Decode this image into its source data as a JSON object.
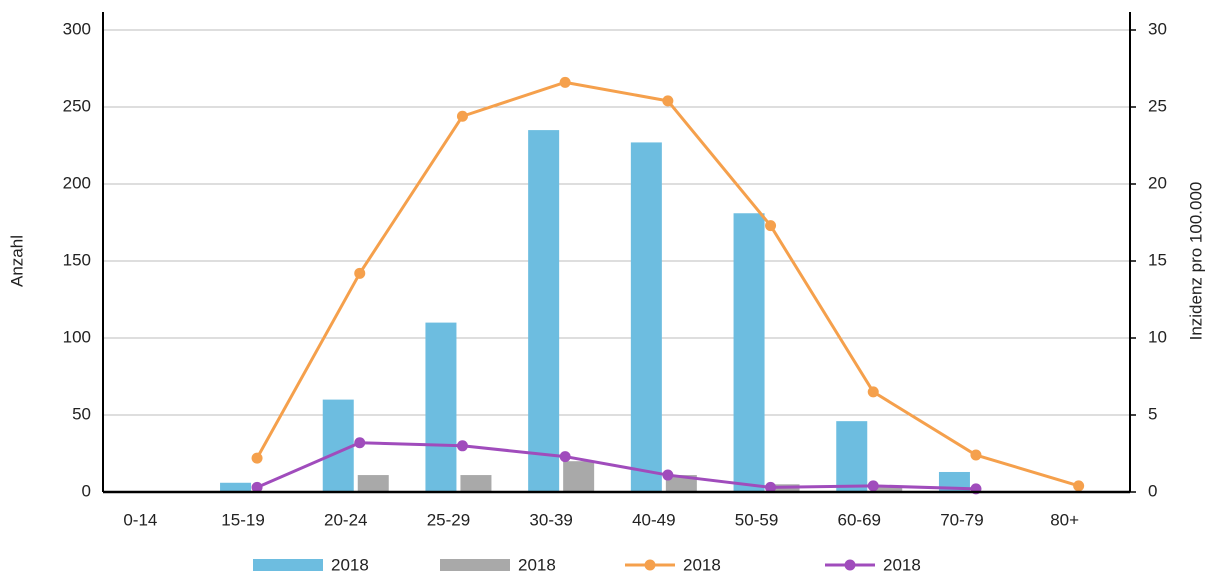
{
  "chart_data": {
    "type": "bar-line",
    "categories": [
      "0-14",
      "15-19",
      "20-24",
      "25-29",
      "30-39",
      "40-49",
      "50-59",
      "60-69",
      "70-79",
      "80+"
    ],
    "y_label": "Anzahl",
    "y2_label": "Inzidenz pro 100.000",
    "ylim": [
      0,
      300
    ],
    "yticks": [
      0,
      50,
      100,
      150,
      200,
      250,
      300
    ],
    "y2lim": [
      0,
      30
    ],
    "y2ticks": [
      0,
      5,
      10,
      15,
      20,
      25,
      30
    ],
    "grid": true,
    "legend": "bottom",
    "series": [
      {
        "name": "2018",
        "type": "bar",
        "color": "#6dbde0",
        "values": [
          0,
          6,
          60,
          110,
          235,
          227,
          181,
          46,
          13,
          0
        ]
      },
      {
        "name": "2018",
        "type": "bar",
        "color": "#a9a9a9",
        "values": [
          0,
          0,
          11,
          11,
          20,
          11,
          5,
          3,
          0,
          0
        ]
      },
      {
        "name": "2018",
        "type": "line",
        "axis": "y2",
        "color": "#f5a04c",
        "values": [
          null,
          2.2,
          14.2,
          24.4,
          26.6,
          25.4,
          17.3,
          6.5,
          2.4,
          0.4
        ]
      },
      {
        "name": "2018",
        "type": "line",
        "axis": "y2",
        "color": "#a04cbc",
        "values": [
          null,
          0.3,
          3.2,
          3.0,
          2.3,
          1.1,
          0.3,
          0.4,
          0.2,
          null
        ]
      }
    ]
  }
}
